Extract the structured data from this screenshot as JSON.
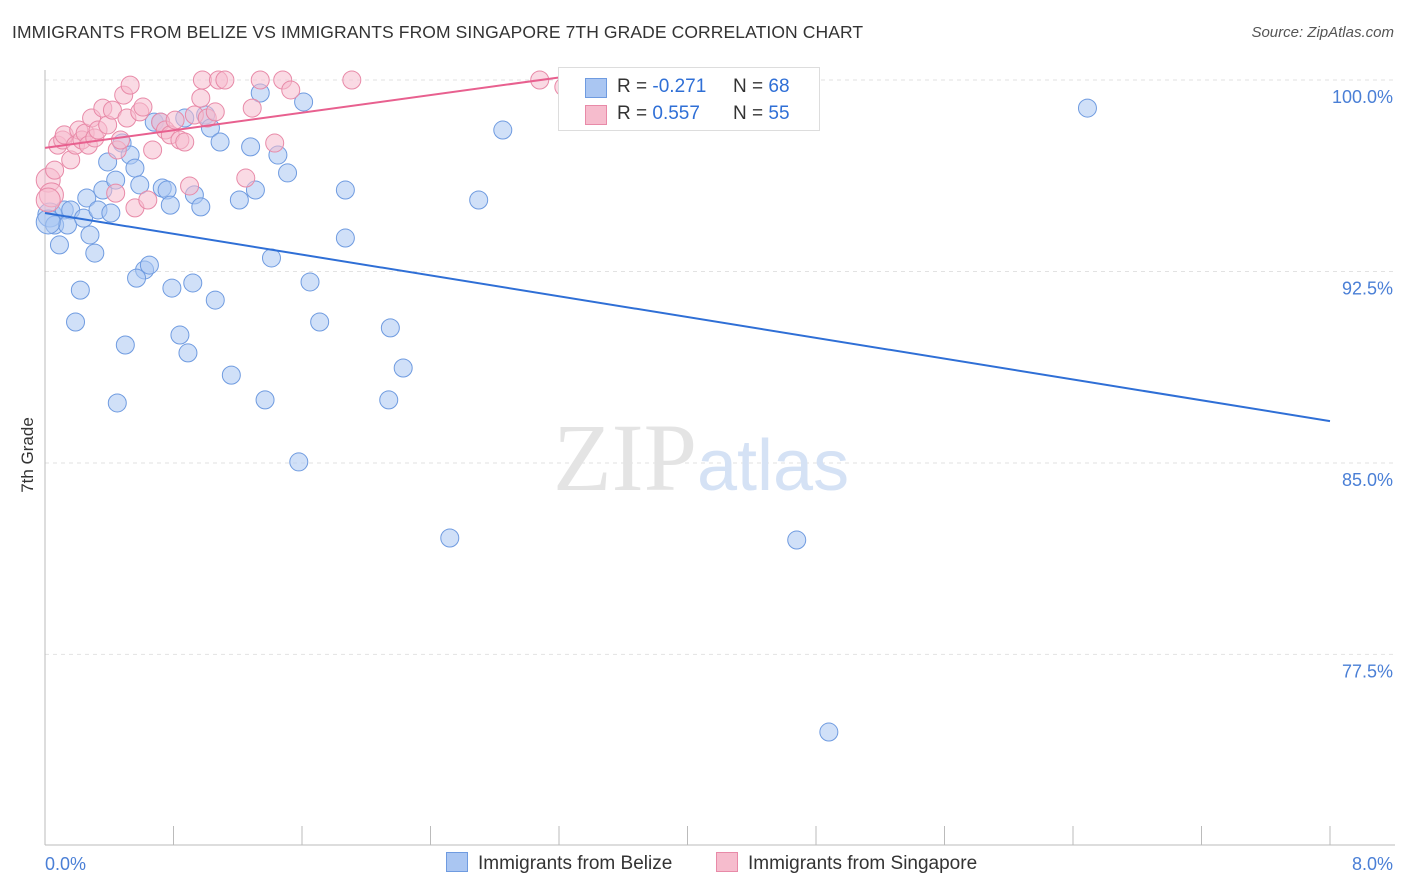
{
  "chart_data": {
    "type": "scatter",
    "title": "IMMIGRANTS FROM BELIZE VS IMMIGRANTS FROM SINGAPORE 7TH GRADE CORRELATION CHART",
    "source": "Source: ZipAtlas.com",
    "xlabel": "",
    "ylabel": "7th Grade",
    "xlim": [
      0,
      8
    ],
    "ylim": [
      70.8,
      100.4
    ],
    "x_tick_labels": [
      "0.0%",
      "8.0%"
    ],
    "y_ticks": [
      100,
      92.5,
      85,
      77.5
    ],
    "y_tick_labels": [
      "100.0%",
      "92.5%",
      "85.0%",
      "77.5%"
    ],
    "grid": true,
    "watermark": "ZIPatlas",
    "legend": {
      "placement": "top-center",
      "rows": [
        {
          "r_label": "R =",
          "r": "-0.271",
          "n_label": "N =",
          "n": "68"
        },
        {
          "r_label": "R =",
          "r": "0.557",
          "n_label": "N =",
          "n": "55"
        }
      ]
    },
    "series": [
      {
        "name": "Immigrants from Belize",
        "fill": "#aac6f2",
        "stroke": "#6f9be0",
        "line": "#2f6fd6",
        "trend": [
          [
            0,
            94.79
          ],
          [
            8,
            86.64
          ]
        ],
        "x": [
          0.03,
          0.06,
          0.09,
          0.12,
          0.16,
          0.14,
          0.19,
          0.22,
          0.24,
          0.26,
          0.28,
          0.31,
          0.33,
          0.36,
          0.39,
          0.41,
          0.44,
          0.45,
          0.48,
          0.5,
          0.53,
          0.56,
          0.59,
          0.62,
          0.65,
          0.57,
          0.68,
          0.72,
          0.73,
          0.76,
          0.78,
          0.79,
          0.84,
          0.87,
          0.89,
          0.92,
          0.93,
          0.97,
          1.0,
          1.03,
          1.06,
          1.09,
          1.16,
          1.21,
          1.28,
          1.31,
          1.34,
          1.37,
          1.41,
          1.45,
          1.51,
          1.58,
          1.61,
          1.65,
          1.71,
          1.87,
          1.87,
          2.14,
          2.15,
          2.23,
          2.52,
          2.7,
          2.85,
          4.45,
          4.68,
          4.88,
          6.49,
          0.02
        ],
        "y": [
          94.71,
          94.32,
          93.54,
          94.91,
          94.91,
          94.32,
          90.52,
          91.77,
          94.59,
          95.38,
          93.93,
          93.22,
          94.91,
          95.69,
          96.79,
          94.79,
          96.08,
          87.35,
          97.53,
          89.62,
          97.06,
          96.55,
          95.89,
          92.56,
          92.75,
          92.24,
          98.35,
          98.35,
          95.77,
          95.69,
          95.1,
          91.85,
          90.01,
          98.51,
          89.31,
          92.05,
          95.5,
          95.03,
          98.63,
          98.12,
          91.38,
          97.57,
          88.44,
          95.3,
          97.38,
          95.69,
          99.49,
          87.47,
          93.03,
          97.06,
          96.36,
          85.04,
          99.14,
          92.09,
          90.52,
          95.69,
          93.81,
          87.47,
          90.29,
          88.72,
          82.06,
          95.3,
          98.04,
          100.0,
          81.98,
          74.46,
          98.9,
          94.44
        ]
      },
      {
        "name": "Immigrants from Singapore",
        "fill": "#f6bccd",
        "stroke": "#e88aa8",
        "line": "#e8608f",
        "trend": [
          [
            0,
            97.34
          ],
          [
            3.2,
            100.1
          ]
        ],
        "x": [
          0.02,
          0.04,
          0.06,
          0.08,
          0.11,
          0.12,
          0.16,
          0.19,
          0.21,
          0.23,
          0.25,
          0.27,
          0.29,
          0.31,
          0.33,
          0.36,
          0.39,
          0.42,
          0.44,
          0.45,
          0.47,
          0.49,
          0.51,
          0.53,
          0.56,
          0.59,
          0.61,
          0.64,
          0.67,
          0.72,
          0.75,
          0.78,
          0.81,
          0.84,
          0.87,
          0.9,
          0.93,
          0.97,
          0.98,
          1.01,
          1.06,
          1.08,
          1.12,
          1.25,
          1.29,
          1.34,
          1.43,
          1.48,
          1.53,
          1.91,
          3.08,
          3.23,
          3.67,
          3.7,
          0.02
        ],
        "y": [
          96.08,
          95.5,
          96.47,
          97.45,
          97.65,
          97.85,
          96.87,
          97.45,
          98.04,
          97.65,
          97.92,
          97.45,
          98.51,
          97.73,
          98.04,
          98.9,
          98.24,
          98.82,
          95.57,
          97.26,
          97.65,
          99.41,
          98.51,
          99.8,
          94.99,
          98.75,
          98.94,
          95.3,
          97.26,
          98.35,
          98.04,
          97.85,
          98.43,
          97.65,
          97.57,
          95.85,
          98.63,
          99.29,
          100,
          98.51,
          98.75,
          100,
          100,
          96.16,
          98.9,
          100,
          97.53,
          100,
          99.61,
          100,
          100,
          99.73,
          100,
          100,
          95.3
        ]
      }
    ]
  }
}
